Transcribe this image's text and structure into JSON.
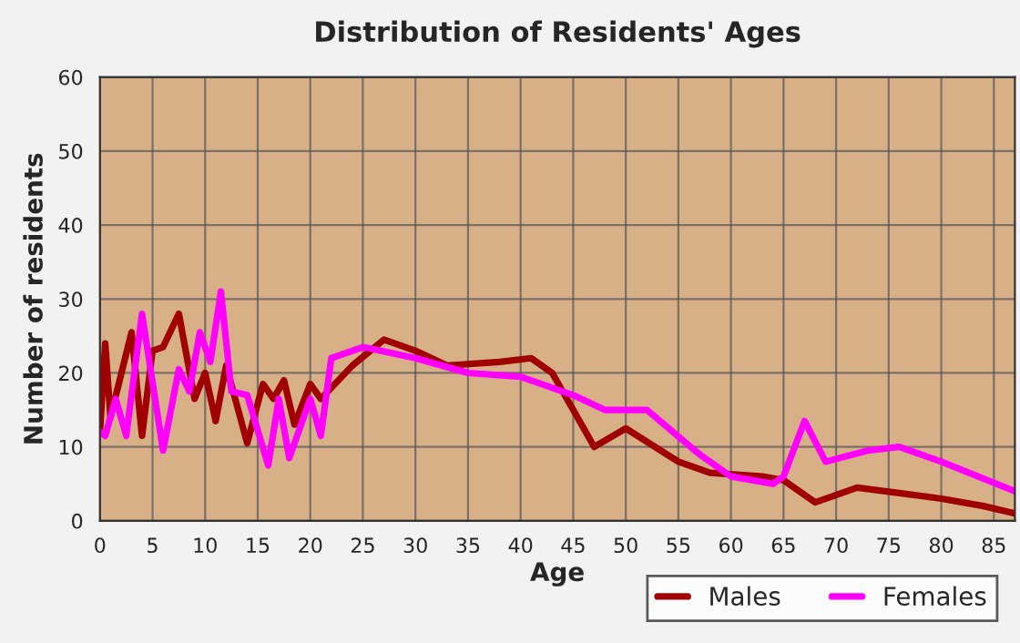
{
  "chart_data": {
    "type": "line",
    "title": "Distribution of Residents' Ages",
    "xlabel": "Age",
    "ylabel": "Number of residents",
    "xlim": [
      0,
      87
    ],
    "ylim": [
      0,
      60
    ],
    "xticks": [
      0,
      5,
      10,
      15,
      20,
      25,
      30,
      35,
      40,
      45,
      50,
      55,
      60,
      65,
      70,
      75,
      80,
      85
    ],
    "yticks": [
      0,
      10,
      20,
      30,
      40,
      50,
      60
    ],
    "grid": true,
    "legend": "bottom right",
    "marker": "none",
    "line_style": "solid",
    "series": [
      {
        "name": "Males",
        "color": "#a00000",
        "x": [
          0,
          0.5,
          1,
          3,
          4,
          5,
          6,
          7.5,
          9,
          10,
          11,
          12,
          14,
          15.5,
          16.5,
          17.5,
          18.5,
          20,
          21,
          24,
          27,
          30,
          33,
          38,
          41,
          43,
          45,
          47,
          50,
          55,
          58,
          63,
          65,
          68,
          72,
          80,
          84,
          87
        ],
        "values": [
          12,
          24,
          14,
          25.5,
          11.5,
          23,
          23.5,
          28,
          16.5,
          20,
          13.5,
          21,
          10.5,
          18.5,
          16.5,
          19,
          13,
          18.5,
          16.5,
          21,
          24.5,
          23,
          21,
          21.5,
          22,
          20,
          15,
          10,
          12.5,
          8,
          6.5,
          6,
          5.5,
          2.5,
          4.5,
          3,
          2,
          1
        ]
      },
      {
        "name": "Females",
        "color": "#ff00ff",
        "x": [
          0,
          0.5,
          1.5,
          2.5,
          4,
          6,
          7.5,
          8.5,
          9.5,
          10.5,
          11.5,
          12.5,
          14,
          16,
          17,
          18,
          20,
          21,
          22,
          25,
          30,
          35,
          40,
          45,
          48,
          52,
          57,
          60,
          64,
          65,
          67,
          69,
          73,
          76,
          80,
          87
        ],
        "values": [
          12,
          11.5,
          16.5,
          11.5,
          28,
          9.5,
          20.5,
          17.5,
          25.5,
          21.5,
          31,
          17.5,
          17,
          7.5,
          16.5,
          8.5,
          16.5,
          11.5,
          22,
          23.5,
          22,
          20,
          19.5,
          17,
          15,
          15,
          9,
          6,
          5,
          6,
          13.5,
          8,
          9.5,
          10,
          8,
          4
        ]
      }
    ]
  }
}
